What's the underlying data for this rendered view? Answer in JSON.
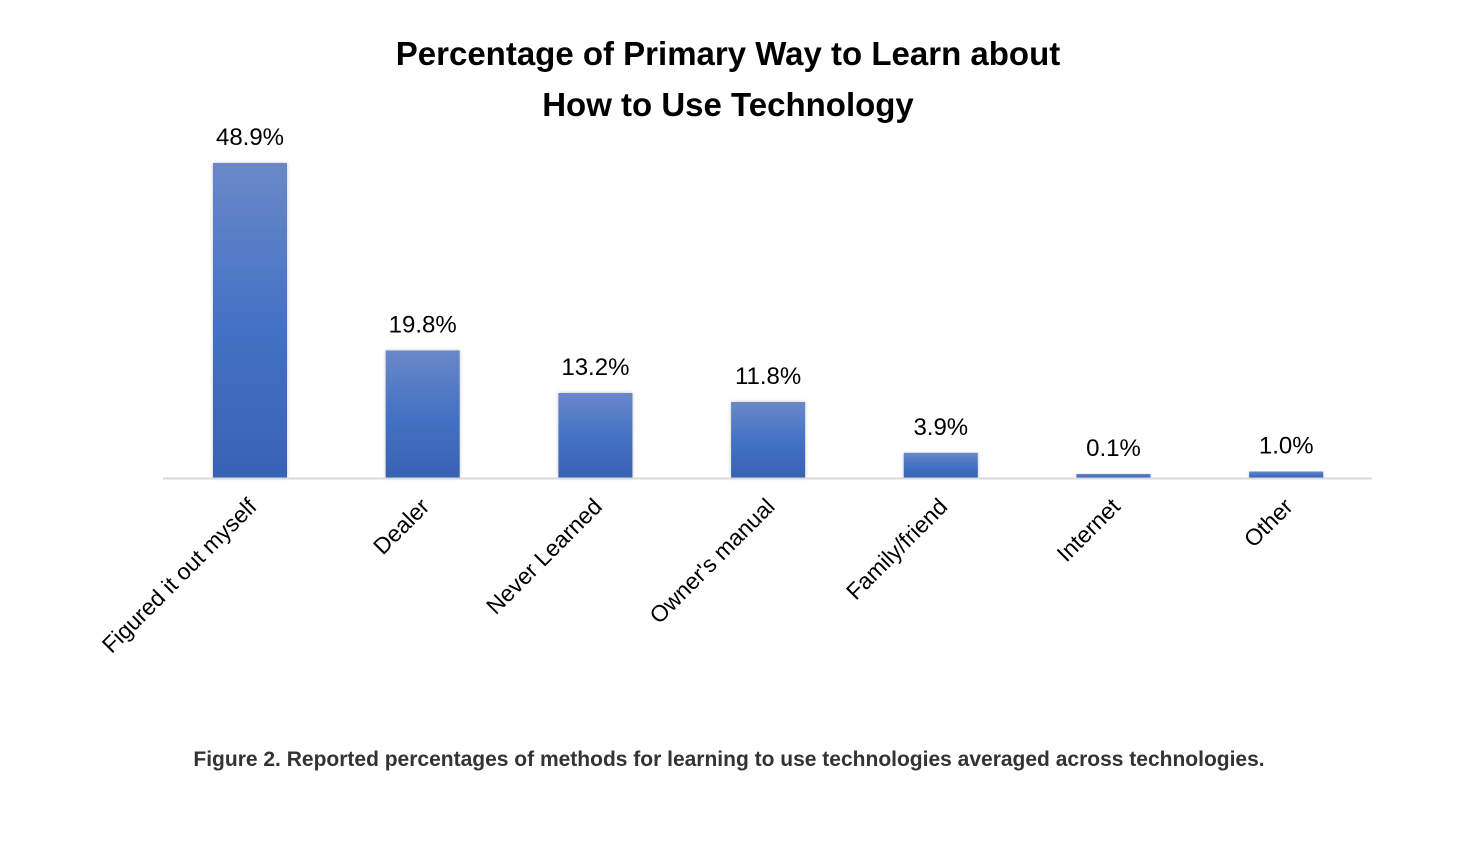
{
  "chart_data": {
    "type": "bar",
    "title_lines": [
      "Percentage of Primary Way to Learn about",
      "How to Use Technology"
    ],
    "categories": [
      "Figured it out myself",
      "Dealer",
      "Never Learned",
      "Owner's manual",
      "Family/friend",
      "Internet",
      "Other"
    ],
    "values": [
      48.9,
      19.8,
      13.2,
      11.8,
      3.9,
      0.1,
      1.0
    ],
    "data_labels": [
      "48.9%",
      "19.8%",
      "13.2%",
      "11.8%",
      "3.9%",
      "0.1%",
      "1.0%"
    ],
    "xlabel": "",
    "ylabel": "",
    "ylim": [
      0,
      50
    ],
    "grid": false,
    "legend": "none",
    "bar_color": "#4472c4",
    "bar_color_top": "#6a88c8",
    "bar_color_bottom": "#3862b3"
  },
  "caption": "Figure 2. Reported percentages of methods for learning to use technologies averaged across technologies."
}
